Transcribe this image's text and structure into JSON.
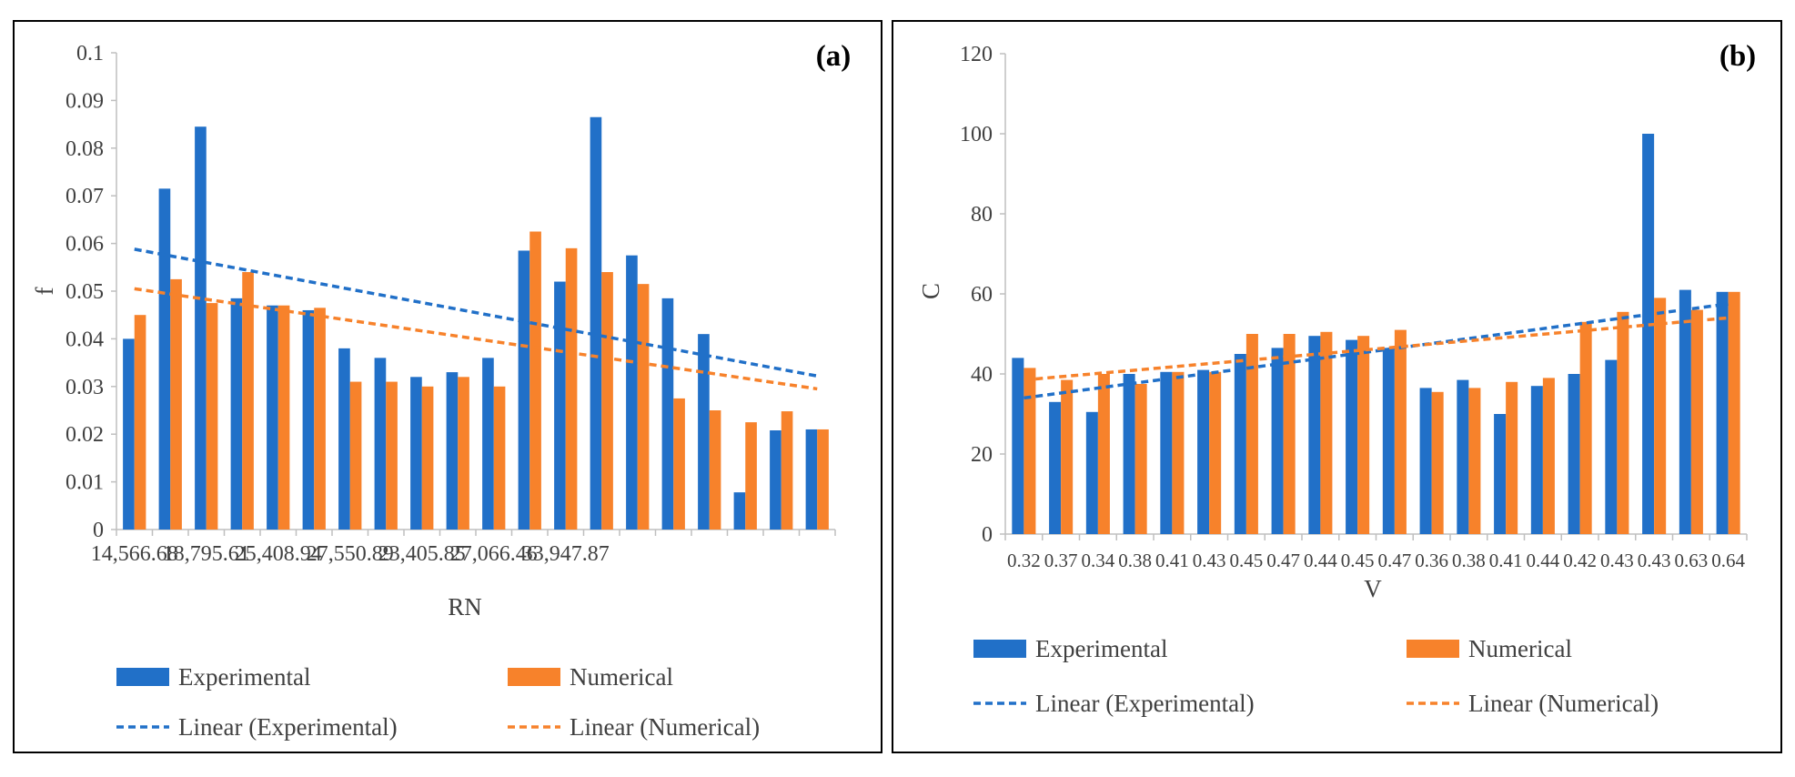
{
  "colors": {
    "experimental": "#2170C8",
    "numerical": "#F7822B",
    "axis": "#BFBFBF",
    "text": "#404040"
  },
  "legend": {
    "experimental": "Experimental",
    "numerical": "Numerical",
    "linear_experimental": "Linear (Experimental)",
    "linear_numerical": "Linear (Numerical)"
  },
  "chart_data": [
    {
      "type": "bar",
      "panel_label": "(a)",
      "xlabel": "RN",
      "ylabel": "f",
      "ylim": [
        0,
        0.1
      ],
      "yticks": [
        "0",
        "0.01",
        "0.02",
        "0.03",
        "0.04",
        "0.05",
        "0.06",
        "0.07",
        "0.08",
        "0.09",
        "0.1"
      ],
      "xtick_labels": [
        "14,566.68",
        "18,795.61",
        "25,408.94",
        "27,550.89",
        "23,405.85",
        "27,066.46",
        "33,947.87"
      ],
      "xtick_label_every": 2,
      "category_count": 20,
      "series": [
        {
          "name": "Experimental",
          "values": [
            0.04,
            0.0715,
            0.0845,
            0.0485,
            0.047,
            0.046,
            0.038,
            0.036,
            0.032,
            0.033,
            0.036,
            0.0585,
            0.052,
            0.0865,
            0.0575,
            0.0485,
            0.041,
            0.0078,
            0.0208,
            0.021
          ]
        },
        {
          "name": "Numerical",
          "values": [
            0.045,
            0.0525,
            0.0475,
            0.054,
            0.047,
            0.0465,
            0.031,
            0.031,
            0.03,
            0.032,
            0.03,
            0.0625,
            0.059,
            0.054,
            0.0515,
            0.0275,
            0.025,
            0.0225,
            0.0248,
            0.021
          ]
        }
      ],
      "trendlines": [
        {
          "name": "Linear (Experimental)",
          "start": 0.0588,
          "end": 0.0322
        },
        {
          "name": "Linear (Numerical)",
          "start": 0.0505,
          "end": 0.0295
        }
      ],
      "grid": false,
      "legend_position": "bottom"
    },
    {
      "type": "bar",
      "panel_label": "(b)",
      "xlabel": "V",
      "ylabel": "C",
      "ylim": [
        0,
        120
      ],
      "yticks": [
        "0",
        "20",
        "40",
        "60",
        "80",
        "100",
        "120"
      ],
      "categories": [
        "0.32",
        "0.37",
        "0.34",
        "0.38",
        "0.41",
        "0.43",
        "0.45",
        "0.47",
        "0.44",
        "0.45",
        "0.47",
        "0.36",
        "0.38",
        "0.41",
        "0.44",
        "0.42",
        "0.43",
        "0.43",
        "0.63",
        "0.64"
      ],
      "series": [
        {
          "name": "Experimental",
          "values": [
            44,
            33,
            30.5,
            40,
            40.5,
            41,
            45,
            46.5,
            49.5,
            48.5,
            46.5,
            36.5,
            38.5,
            30,
            37,
            40,
            43.5,
            100,
            61,
            60.5
          ]
        },
        {
          "name": "Numerical",
          "values": [
            41.5,
            38.5,
            40,
            37.5,
            40.5,
            40.5,
            50,
            50,
            50.5,
            49.5,
            51,
            35.5,
            36.5,
            38,
            39,
            53,
            55.5,
            59,
            56,
            60.5
          ]
        }
      ],
      "trendlines": [
        {
          "name": "Linear (Experimental)",
          "start": 34,
          "end": 57.5
        },
        {
          "name": "Linear (Numerical)",
          "start": 38.5,
          "end": 54
        }
      ],
      "grid": false,
      "legend_position": "bottom"
    }
  ]
}
